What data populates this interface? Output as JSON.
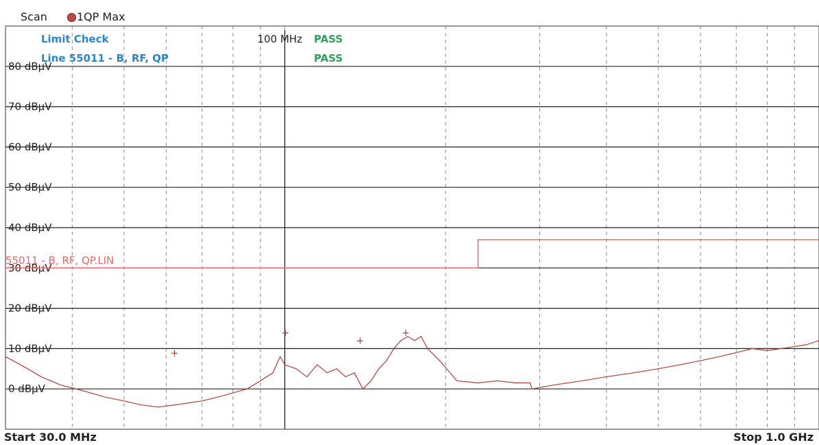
{
  "header": {
    "scan_label": "Scan",
    "trace_label": "1QP Max"
  },
  "limit_check": {
    "title": "Limit Check",
    "line_label": "Line 55011 - B, RF, QP",
    "status1": "PASS",
    "status2": "PASS"
  },
  "marker": {
    "label": "100 MHz"
  },
  "limit_line_name": "55011 - B, RF, QP.LIN",
  "footer": {
    "start": "Start 30.0 MHz",
    "stop": "Stop 1.0 GHz"
  },
  "colors": {
    "trace": "#b03a3a",
    "limit": "#e06a6a",
    "limit_text": "#2b86c9",
    "pass": "#2aa05a"
  },
  "chart_data": {
    "type": "line",
    "x_scale": "log",
    "xlim_mhz": [
      30,
      1000
    ],
    "ylim": [
      -10,
      90
    ],
    "y_ticks": [
      {
        "value": 80,
        "label": "80 dBµV"
      },
      {
        "value": 70,
        "label": "70 dBµV"
      },
      {
        "value": 60,
        "label": "60 dBµV"
      },
      {
        "value": 50,
        "label": "50 dBµV"
      },
      {
        "value": 40,
        "label": "40 dBµV"
      },
      {
        "value": 30,
        "label": "30 dBµV"
      },
      {
        "value": 20,
        "label": "20 dBµV"
      },
      {
        "value": 10,
        "label": "10 dBµV"
      },
      {
        "value": 0,
        "label": "0 dBµV"
      }
    ],
    "grid": true,
    "marker_mhz": 100,
    "limit_line": [
      [
        30,
        30
      ],
      [
        230,
        30
      ],
      [
        230,
        37
      ],
      [
        1000,
        37
      ]
    ],
    "series": [
      {
        "values": [
          [
            30,
            8
          ],
          [
            31,
            7
          ],
          [
            33,
            5
          ],
          [
            35,
            3
          ],
          [
            38,
            1
          ],
          [
            42,
            -0.5
          ],
          [
            46,
            -2
          ],
          [
            50,
            -3
          ],
          [
            54,
            -4
          ],
          [
            58,
            -4.5
          ],
          [
            62,
            -4
          ],
          [
            66,
            -3.5
          ],
          [
            70,
            -3
          ],
          [
            75,
            -2
          ],
          [
            80,
            -1
          ],
          [
            85,
            0
          ],
          [
            90,
            2
          ],
          [
            95,
            4
          ],
          [
            98,
            8
          ],
          [
            100,
            6
          ],
          [
            105,
            5
          ],
          [
            110,
            3
          ],
          [
            115,
            6
          ],
          [
            120,
            4
          ],
          [
            125,
            5
          ],
          [
            130,
            3
          ],
          [
            135,
            4
          ],
          [
            140,
            0
          ],
          [
            145,
            2
          ],
          [
            150,
            5
          ],
          [
            155,
            7
          ],
          [
            160,
            10
          ],
          [
            165,
            12
          ],
          [
            170,
            13
          ],
          [
            175,
            12
          ],
          [
            180,
            13
          ],
          [
            185,
            10
          ],
          [
            195,
            7
          ],
          [
            210,
            2
          ],
          [
            230,
            1.5
          ],
          [
            250,
            2
          ],
          [
            270,
            1.5
          ],
          [
            288,
            1.5
          ],
          [
            290,
            0
          ],
          [
            320,
            1
          ],
          [
            360,
            2
          ],
          [
            400,
            3
          ],
          [
            450,
            4
          ],
          [
            500,
            5
          ],
          [
            550,
            6
          ],
          [
            600,
            7
          ],
          [
            650,
            8
          ],
          [
            700,
            9
          ],
          [
            750,
            10
          ],
          [
            800,
            9.5
          ],
          [
            850,
            10
          ],
          [
            900,
            10.5
          ],
          [
            950,
            11
          ],
          [
            1000,
            12
          ]
        ]
      }
    ],
    "peaks": [
      {
        "x": 62,
        "y": 9
      },
      {
        "x": 100,
        "y": 14
      },
      {
        "x": 138,
        "y": 12
      },
      {
        "x": 168,
        "y": 14
      }
    ]
  }
}
